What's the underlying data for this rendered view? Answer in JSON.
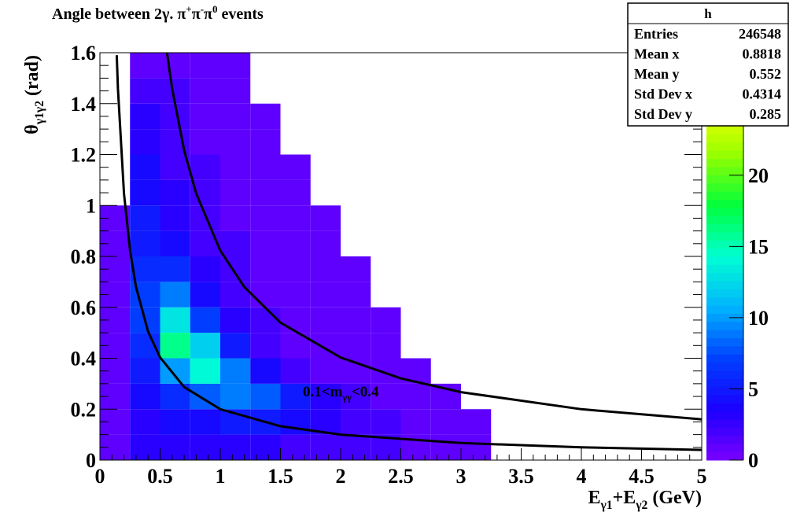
{
  "chart_data": {
    "type": "heatmap",
    "title": [
      {
        "t": "Angle between  2γ.  π"
      },
      {
        "t": "+",
        "sup": true
      },
      {
        "t": "π"
      },
      {
        "t": "-",
        "sup": true
      },
      {
        "t": "π"
      },
      {
        "t": "0",
        "sup": true
      },
      {
        "t": " events"
      }
    ],
    "x_label": [
      {
        "t": "E"
      },
      {
        "t": "γ1",
        "sub": true
      },
      {
        "t": "+E"
      },
      {
        "t": "γ2",
        "sub": true
      },
      {
        "t": " (GeV)"
      }
    ],
    "y_label": [
      {
        "t": "θ"
      },
      {
        "t": "γ1γ2",
        "sub": true
      },
      {
        "t": " (rad)"
      }
    ],
    "annotation": [
      {
        "t": "0.1<m"
      },
      {
        "t": "γγ",
        "sub": true
      },
      {
        "t": "<0.4"
      }
    ],
    "xlim": [
      0,
      5
    ],
    "xticks": [
      0,
      0.5,
      1,
      1.5,
      2,
      2.5,
      3,
      3.5,
      4,
      4.5,
      5
    ],
    "ylim": [
      0,
      1.6
    ],
    "yticks": [
      0,
      0.2,
      0.4,
      0.6,
      0.8,
      1,
      1.2,
      1.4,
      1.6
    ],
    "zlim": [
      0,
      28.6
    ],
    "zticks": [
      0,
      5,
      10,
      15,
      20
    ],
    "palette": [
      "#7a00ff",
      "#1a00ff",
      "#0040ff",
      "#00b4ff",
      "#00ffd2",
      "#00ff3c",
      "#96ff00",
      "#ffff00",
      "#ffa000"
    ],
    "xbins": [
      0,
      0.25,
      0.5,
      0.75,
      1,
      1.25,
      1.5,
      1.75,
      2,
      2.25,
      2.5,
      2.75,
      3,
      3.25,
      3.5,
      3.75,
      4,
      4.25,
      4.5,
      4.75,
      5
    ],
    "ybins": [
      0,
      0.1,
      0.2,
      0.3,
      0.4,
      0.5,
      0.6,
      0.7,
      0.8,
      0.9,
      1,
      1.1,
      1.2,
      1.3,
      1.4,
      1.5,
      1.6
    ],
    "z": [
      [
        1,
        3,
        3,
        3,
        3,
        3,
        2,
        2,
        2,
        2,
        1,
        1,
        1,
        0,
        0,
        0,
        0,
        0,
        0,
        0
      ],
      [
        1,
        3,
        4,
        4,
        5,
        5,
        4,
        3,
        2,
        2,
        1,
        1,
        1,
        0,
        0,
        0,
        0,
        0,
        0,
        0
      ],
      [
        1,
        4,
        6,
        8,
        9,
        8,
        5,
        3,
        2,
        1,
        1,
        1,
        0,
        0,
        0,
        0,
        0,
        0,
        0,
        0
      ],
      [
        1,
        5,
        10,
        14,
        9,
        4,
        2,
        1,
        1,
        1,
        1,
        0,
        0,
        0,
        0,
        0,
        0,
        0,
        0,
        0
      ],
      [
        1,
        6,
        16,
        12,
        5,
        2,
        1,
        1,
        1,
        1,
        0,
        0,
        0,
        0,
        0,
        0,
        0,
        0,
        0,
        0
      ],
      [
        1,
        7,
        13,
        7,
        3,
        2,
        1,
        1,
        1,
        1,
        0,
        0,
        0,
        0,
        0,
        0,
        0,
        0,
        0,
        0
      ],
      [
        1,
        7,
        9,
        4,
        2,
        1,
        1,
        1,
        1,
        0,
        0,
        0,
        0,
        0,
        0,
        0,
        0,
        0,
        0,
        0
      ],
      [
        1,
        6,
        6,
        3,
        2,
        1,
        1,
        1,
        1,
        0,
        0,
        0,
        0,
        0,
        0,
        0,
        0,
        0,
        0,
        0
      ],
      [
        1,
        5,
        4,
        2,
        2,
        1,
        1,
        1,
        0,
        0,
        0,
        0,
        0,
        0,
        0,
        0,
        0,
        0,
        0,
        0
      ],
      [
        1,
        5,
        3,
        2,
        1,
        1,
        1,
        1,
        0,
        0,
        0,
        0,
        0,
        0,
        0,
        0,
        0,
        0,
        0,
        0
      ],
      [
        0,
        4,
        3,
        2,
        1,
        1,
        1,
        0,
        0,
        0,
        0,
        0,
        0,
        0,
        0,
        0,
        0,
        0,
        0,
        0
      ],
      [
        0,
        4,
        2,
        2,
        1,
        1,
        1,
        0,
        0,
        0,
        0,
        0,
        0,
        0,
        0,
        0,
        0,
        0,
        0,
        0
      ],
      [
        0,
        3,
        2,
        1,
        1,
        1,
        0,
        0,
        0,
        0,
        0,
        0,
        0,
        0,
        0,
        0,
        0,
        0,
        0,
        0
      ],
      [
        0,
        3,
        2,
        1,
        1,
        1,
        0,
        0,
        0,
        0,
        0,
        0,
        0,
        0,
        0,
        0,
        0,
        0,
        0,
        0
      ],
      [
        0,
        2,
        2,
        1,
        1,
        0,
        0,
        0,
        0,
        0,
        0,
        0,
        0,
        0,
        0,
        0,
        0,
        0,
        0,
        0
      ],
      [
        0,
        1,
        1,
        1,
        1,
        0,
        0,
        0,
        0,
        0,
        0,
        0,
        0,
        0,
        0,
        0,
        0,
        0,
        0,
        0
      ]
    ],
    "curves": [
      {
        "color": "#000000",
        "x": [
          0.14,
          0.15,
          0.2,
          0.25,
          0.3,
          0.4,
          0.5,
          0.7,
          1,
          1.5,
          2,
          3,
          4,
          5
        ],
        "values": [
          1.59,
          1.459,
          1.047,
          0.823,
          0.68,
          0.505,
          0.403,
          0.287,
          0.2,
          0.133,
          0.1,
          0.067,
          0.05,
          0.04
        ]
      },
      {
        "color": "#000000",
        "x": [
          0.53,
          0.56,
          0.6,
          0.7,
          0.8,
          1,
          1.2,
          1.5,
          2,
          2.5,
          3,
          4,
          5
        ],
        "values": [
          1.71,
          1.59,
          1.459,
          1.216,
          1.047,
          0.823,
          0.68,
          0.54,
          0.403,
          0.321,
          0.267,
          0.2,
          0.16
        ]
      }
    ],
    "stats": {
      "title": "h",
      "rows": [
        {
          "label": "Entries",
          "value": 246548
        },
        {
          "label": "Mean x",
          "value": 0.8818
        },
        {
          "label": "Mean y",
          "value": 0.552
        },
        {
          "label": "Std Dev x",
          "value": 0.4314
        },
        {
          "label": "Std Dev y",
          "value": 0.285
        }
      ]
    }
  }
}
